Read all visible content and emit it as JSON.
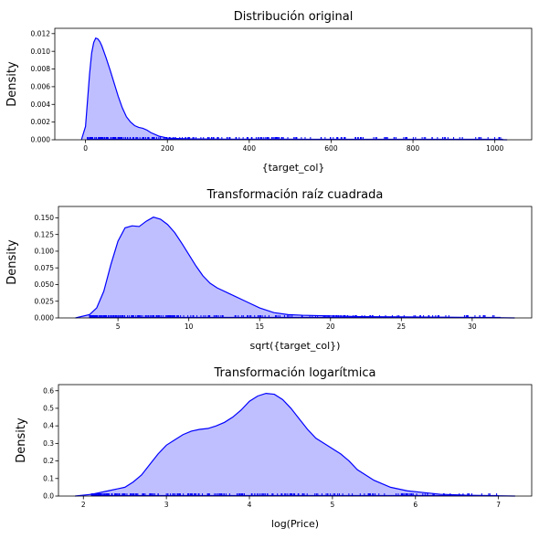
{
  "chart_data": [
    {
      "type": "area",
      "title": "Distribución original",
      "xlabel": "{target_col}",
      "ylabel": "Density",
      "xlim": [
        -75,
        1090
      ],
      "ylim": [
        0,
        0.0126
      ],
      "xticks": [
        0,
        200,
        400,
        600,
        800,
        1000
      ],
      "yticks": [
        0.0,
        0.002,
        0.004,
        0.006,
        0.008,
        0.01,
        0.012
      ],
      "ytick_decimals": 3,
      "color": "#0000ff",
      "fill": "#bfbfff",
      "grid": false,
      "series": [
        {
          "x": [
            -10,
            0,
            5,
            10,
            15,
            20,
            25,
            30,
            35,
            40,
            50,
            60,
            70,
            80,
            90,
            100,
            110,
            120,
            130,
            140,
            150,
            160,
            170,
            180,
            190,
            200,
            220,
            250,
            300,
            350,
            400,
            450,
            500,
            550,
            600,
            650,
            700,
            750,
            800,
            850,
            900,
            950,
            1000,
            1030
          ],
          "y": [
            0,
            0.0015,
            0.0045,
            0.0075,
            0.0098,
            0.011,
            0.0115,
            0.0114,
            0.0111,
            0.0106,
            0.0093,
            0.0079,
            0.0064,
            0.0049,
            0.0036,
            0.0026,
            0.002,
            0.0016,
            0.0014,
            0.0013,
            0.0011,
            0.0008,
            0.0006,
            0.0004,
            0.0003,
            0.0002,
            0.00015,
            0.0001,
            8e-05,
            6e-05,
            6e-05,
            5e-05,
            5e-05,
            4e-05,
            4e-05,
            4e-05,
            4e-05,
            3e-05,
            3e-05,
            2e-05,
            2e-05,
            1e-05,
            1e-05,
            0
          ]
        }
      ],
      "rug_range": [
        5,
        1020
      ]
    },
    {
      "type": "area",
      "title": "Transformación raíz cuadrada",
      "xlabel": "sqrt({target_col})",
      "ylabel": "Density",
      "xlim": [
        0.8,
        34.2
      ],
      "ylim": [
        0,
        0.167
      ],
      "xticks": [
        5,
        10,
        15,
        20,
        25,
        30
      ],
      "yticks": [
        0.0,
        0.025,
        0.05,
        0.075,
        0.1,
        0.125,
        0.15
      ],
      "ytick_decimals": 3,
      "color": "#0000ff",
      "fill": "#bfbfff",
      "grid": false,
      "series": [
        {
          "x": [
            2.0,
            3.0,
            3.5,
            4.0,
            4.5,
            5.0,
            5.5,
            6.0,
            6.5,
            7.0,
            7.5,
            8.0,
            8.5,
            9.0,
            9.5,
            10.0,
            10.5,
            11.0,
            11.5,
            12.0,
            13.0,
            14.0,
            15.0,
            16.0,
            17.0,
            18.0,
            20.0,
            22.0,
            25.0,
            28.0,
            31.0,
            33.0
          ],
          "y": [
            0,
            0.005,
            0.015,
            0.04,
            0.08,
            0.115,
            0.135,
            0.138,
            0.137,
            0.145,
            0.151,
            0.148,
            0.14,
            0.128,
            0.112,
            0.095,
            0.078,
            0.063,
            0.052,
            0.045,
            0.035,
            0.025,
            0.015,
            0.008,
            0.005,
            0.004,
            0.003,
            0.002,
            0.0015,
            0.001,
            0.0005,
            0
          ]
        }
      ],
      "rug_range": [
        3,
        32
      ]
    },
    {
      "type": "area",
      "title": "Transformación logarítmica",
      "xlabel": "log(Price)",
      "ylabel": "Density",
      "xlim": [
        1.7,
        7.4
      ],
      "ylim": [
        0,
        0.635
      ],
      "xticks": [
        2,
        3,
        4,
        5,
        6,
        7
      ],
      "yticks": [
        0.0,
        0.1,
        0.2,
        0.3,
        0.4,
        0.5,
        0.6
      ],
      "ytick_decimals": 1,
      "color": "#0000ff",
      "fill": "#bfbfff",
      "grid": false,
      "series": [
        {
          "x": [
            1.9,
            2.1,
            2.3,
            2.5,
            2.6,
            2.7,
            2.8,
            2.9,
            3.0,
            3.1,
            3.2,
            3.3,
            3.4,
            3.5,
            3.6,
            3.7,
            3.8,
            3.9,
            4.0,
            4.1,
            4.2,
            4.3,
            4.4,
            4.5,
            4.6,
            4.7,
            4.8,
            4.9,
            5.0,
            5.1,
            5.2,
            5.3,
            5.5,
            5.7,
            5.9,
            6.1,
            6.3,
            6.6,
            6.9,
            7.2
          ],
          "y": [
            0,
            0.01,
            0.03,
            0.05,
            0.08,
            0.12,
            0.18,
            0.24,
            0.29,
            0.32,
            0.35,
            0.37,
            0.38,
            0.385,
            0.4,
            0.42,
            0.45,
            0.49,
            0.54,
            0.57,
            0.585,
            0.58,
            0.55,
            0.5,
            0.44,
            0.38,
            0.33,
            0.3,
            0.27,
            0.24,
            0.2,
            0.15,
            0.09,
            0.05,
            0.03,
            0.02,
            0.01,
            0.005,
            0.002,
            0
          ]
        }
      ],
      "rug_range": [
        2.1,
        7.0
      ]
    }
  ]
}
